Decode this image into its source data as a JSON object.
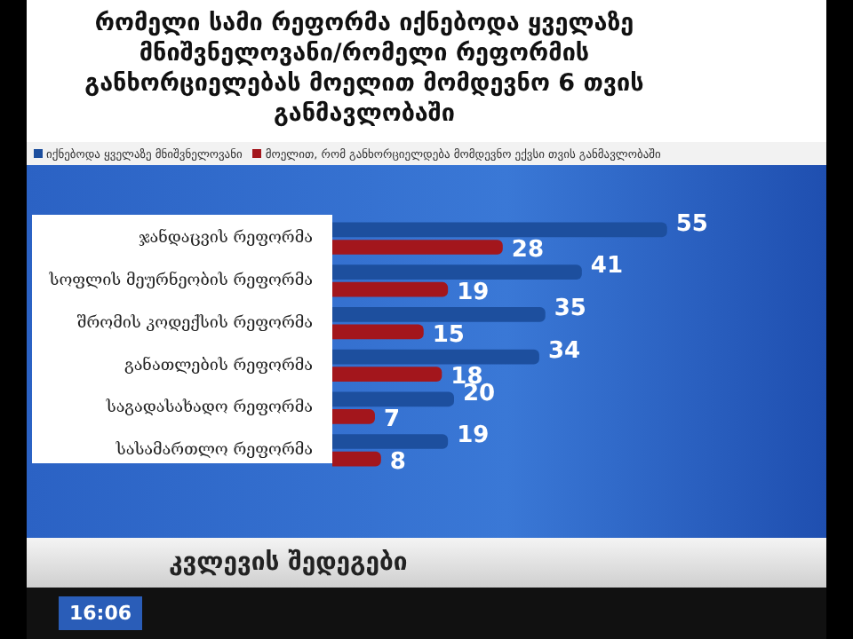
{
  "chart_data": {
    "type": "bar",
    "orientation": "horizontal",
    "title": "რომელი სამი რეფორმა იქნებოდა ყველაზე მნიშვნელოვანი/რომელი რეფორმის განხორციელებას მოელით მომდევნო 6 თვის განმავლობაში",
    "categories": [
      "ჯანდაცვის რეფორმა",
      "სოფლის მეურნეობის რეფორმა",
      "შრომის კოდექსის რეფორმა",
      "განათლების რეფორმა",
      "საგადასახადო რეფორმა",
      "სასამართლო რეფორმა"
    ],
    "series": [
      {
        "name": "იქნებოდა ყველაზე მნიშვნელოვანი",
        "color": "#1d4f9e",
        "values": [
          55,
          41,
          35,
          34,
          20,
          19
        ]
      },
      {
        "name": "მოელით, რომ განხორციელდება მომდევნო ექვსი თვის განმავლობაში",
        "color": "#a3161c",
        "values": [
          28,
          19,
          15,
          18,
          7,
          8
        ]
      }
    ],
    "data_labels": true,
    "legend": "top",
    "annotations": [
      "კვლევის შედეგები",
      "16:06"
    ]
  }
}
